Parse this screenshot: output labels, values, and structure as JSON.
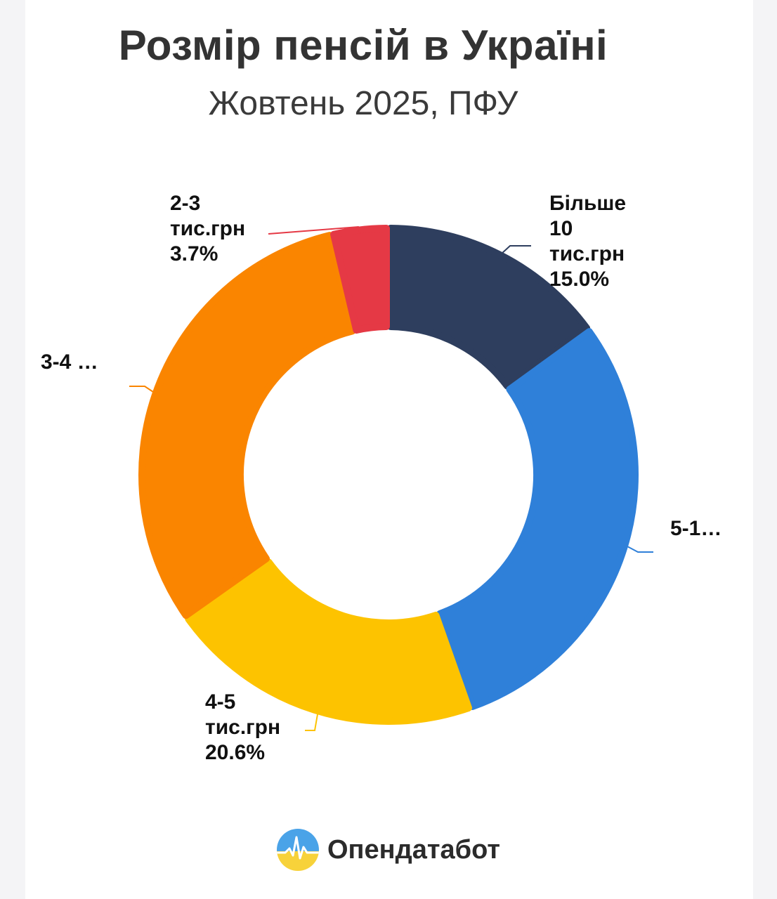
{
  "header": {
    "title": "Розмір пенсій в Україні",
    "subtitle": "Жовтень 2025, ПФУ"
  },
  "chart_data": {
    "type": "pie",
    "style": "donut",
    "slices": [
      {
        "label_lines": [
          "Більше",
          "10",
          "тис.грн",
          "15.0%"
        ],
        "value": 15.0,
        "color": "#2e3e5e"
      },
      {
        "label_lines": [
          "5-1…"
        ],
        "value": 29.6,
        "color": "#2f80d9"
      },
      {
        "label_lines": [
          "4-5",
          "тис.грн",
          "20.6%"
        ],
        "value": 20.6,
        "color": "#fdc300"
      },
      {
        "label_lines": [
          "3-4 …"
        ],
        "value": 31.1,
        "color": "#fa8500"
      },
      {
        "label_lines": [
          "2-3",
          "тис.грн",
          "3.7%"
        ],
        "value": 3.7,
        "color": "#e53945"
      }
    ]
  },
  "brand": {
    "name": "Опендатабот",
    "logo_icon": "opendatabot-logo-icon"
  }
}
